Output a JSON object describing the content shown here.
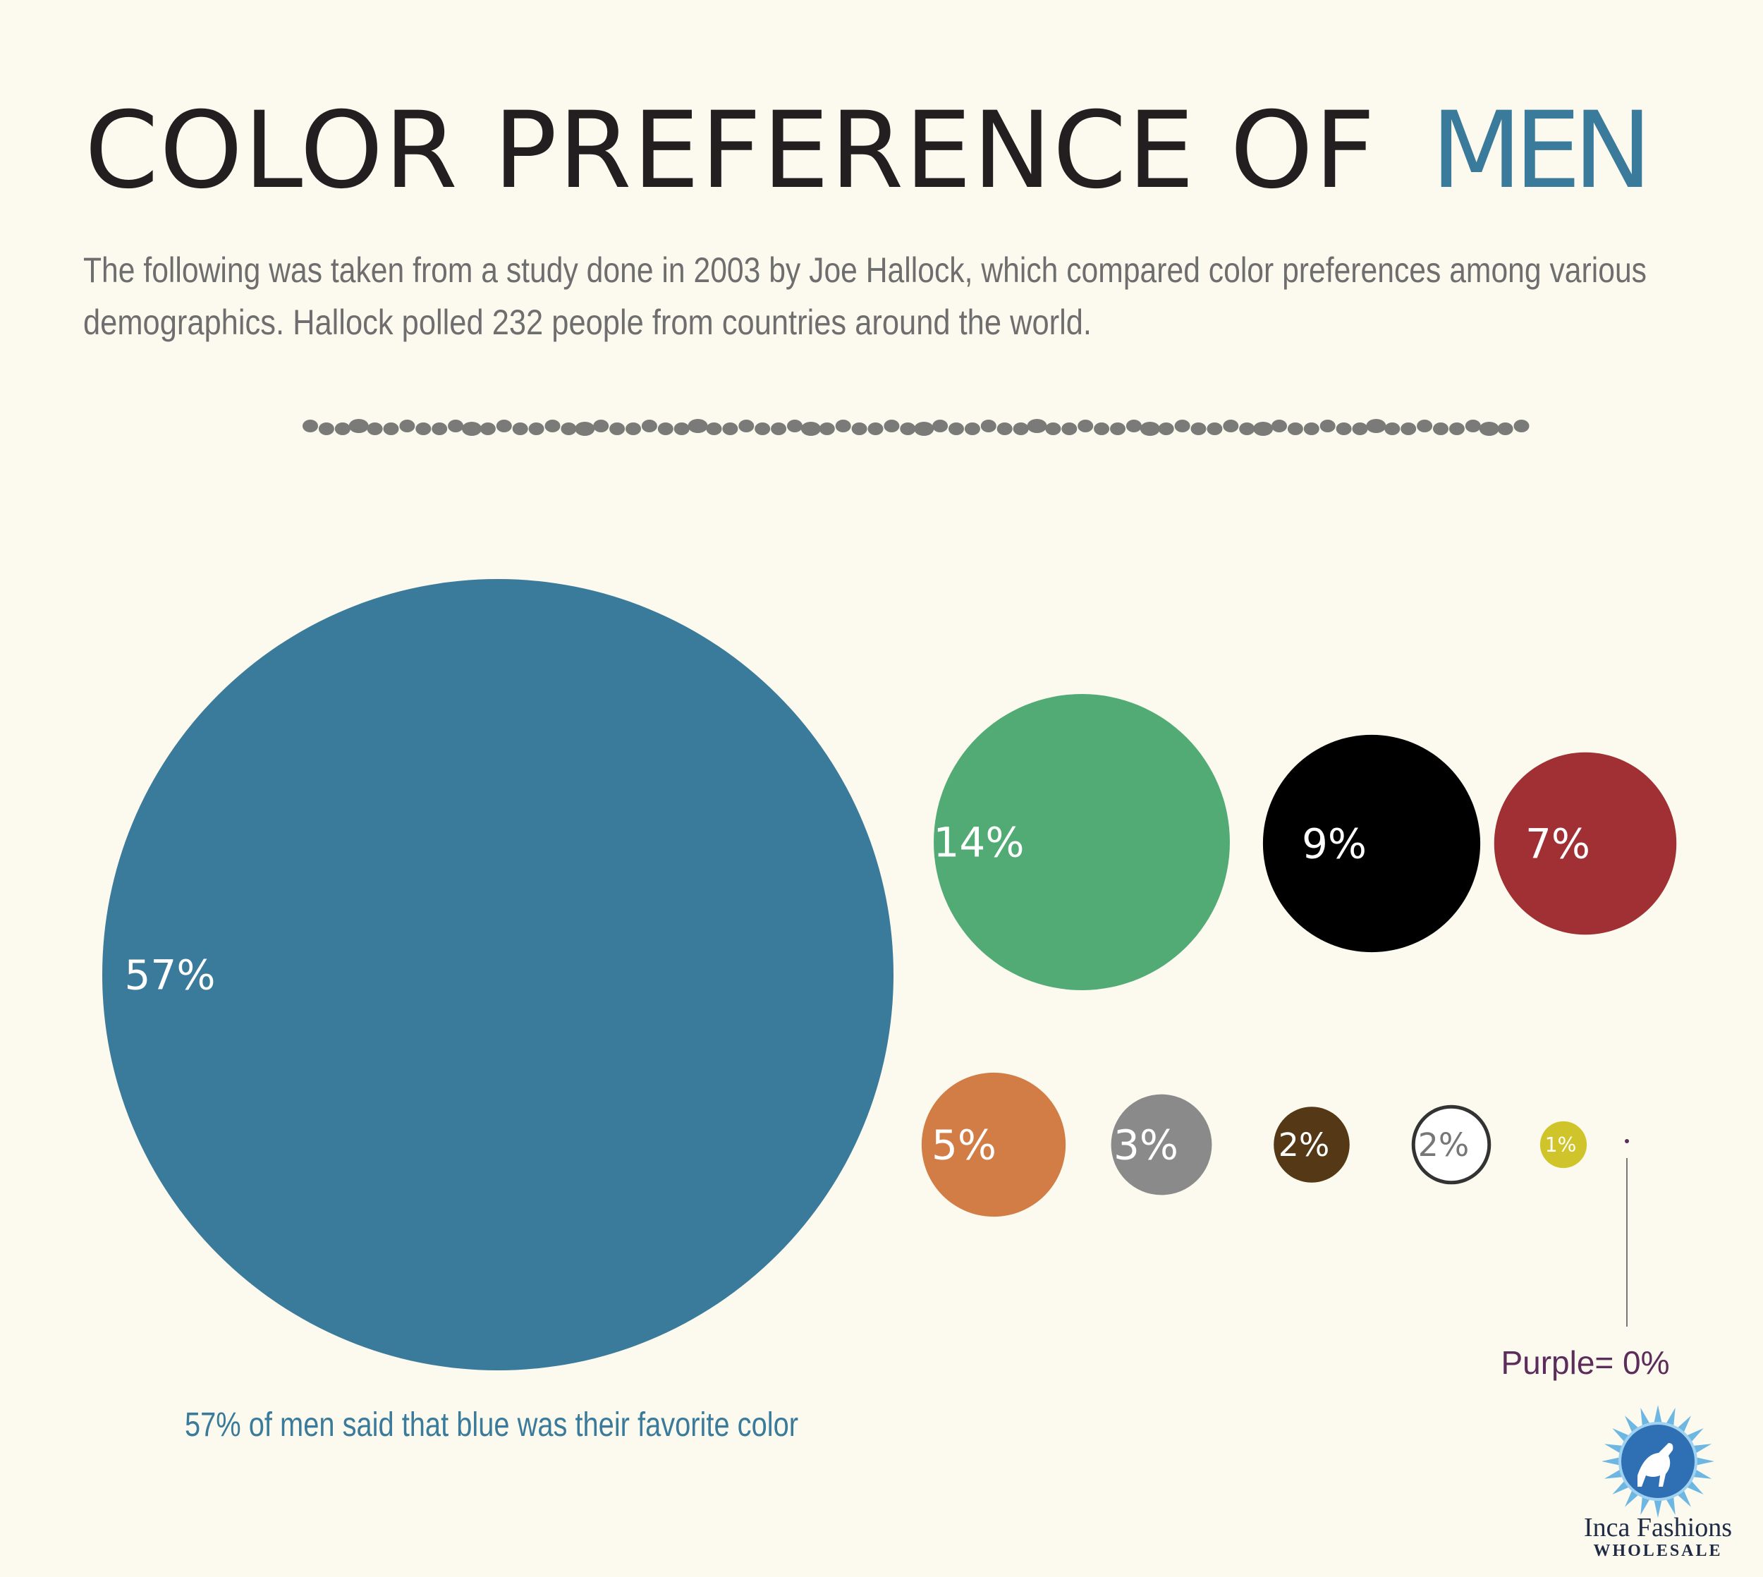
{
  "chart_data": {
    "type": "bubble",
    "title": "COLOR PREFERENCE OF",
    "title_highlight": "MEN",
    "subtitle": [
      "The following was taken from a study done in 2003 by Joe Hallock, which compared color preferences among various",
      "demographics. Hallock polled 232 people from countries around the world."
    ],
    "values": [
      57,
      14,
      9,
      7,
      5,
      3,
      2,
      2,
      1,
      0
    ],
    "value_labels": [
      "57%",
      "14%",
      "9%",
      "7%",
      "5%",
      "3%",
      "2%",
      "2%",
      "1%",
      "Purple= 0%"
    ],
    "colors": [
      "#3a7a9a",
      "#52ab74",
      "#000000",
      "#a03033",
      "#d27d45",
      "#8a8a8a",
      "#553916",
      "#ffffff",
      "#cfc52a",
      "#5c2d5a"
    ],
    "annotation": "57% of men said that blue was their favorite color",
    "logo": {
      "name": "Inca Fashions",
      "tagline": "WHOLESALE"
    }
  }
}
